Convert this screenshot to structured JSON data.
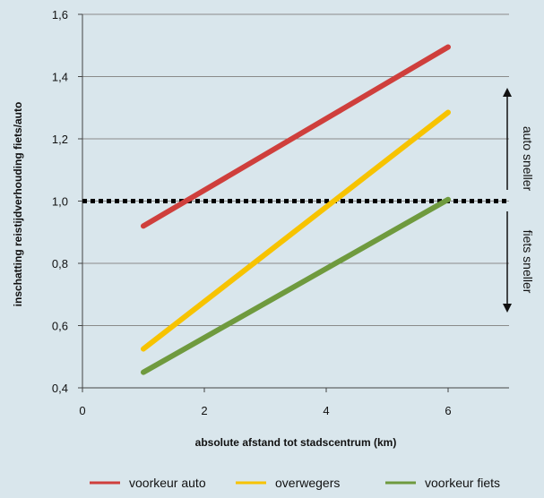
{
  "chart_data": {
    "type": "line",
    "xlabel": "absolute afstand tot stadscentrum (km)",
    "ylabel": "inschatting reistijdverhouding fiets/auto",
    "xlim": [
      0,
      7
    ],
    "ylim": [
      0.4,
      1.6
    ],
    "xticks": [
      0,
      2,
      4,
      6
    ],
    "xtick_labels": [
      "0",
      "2",
      "4",
      "6"
    ],
    "yticks": [
      0.4,
      0.6,
      0.8,
      1.0,
      1.2,
      1.4,
      1.6
    ],
    "ytick_labels": [
      "0,4",
      "0,6",
      "0,8",
      "1,0",
      "1,2",
      "1,4",
      "1,6"
    ],
    "grid": "horizontal",
    "legend_position": "bottom",
    "series": [
      {
        "name": "voorkeur auto",
        "color": "#cf3f3c",
        "x": [
          1,
          6
        ],
        "y": [
          0.92,
          1.495
        ]
      },
      {
        "name": "overwegers",
        "color": "#f7c300",
        "x": [
          1,
          6
        ],
        "y": [
          0.525,
          1.285
        ]
      },
      {
        "name": "voorkeur fiets",
        "color": "#6f9a3e",
        "x": [
          1,
          6
        ],
        "y": [
          0.45,
          1.005
        ]
      }
    ],
    "reference_line": {
      "y": 1.0,
      "style": "dotted",
      "color": "#000000"
    },
    "annotations": {
      "above": "auto sneller",
      "below": "fiets sneller"
    }
  }
}
